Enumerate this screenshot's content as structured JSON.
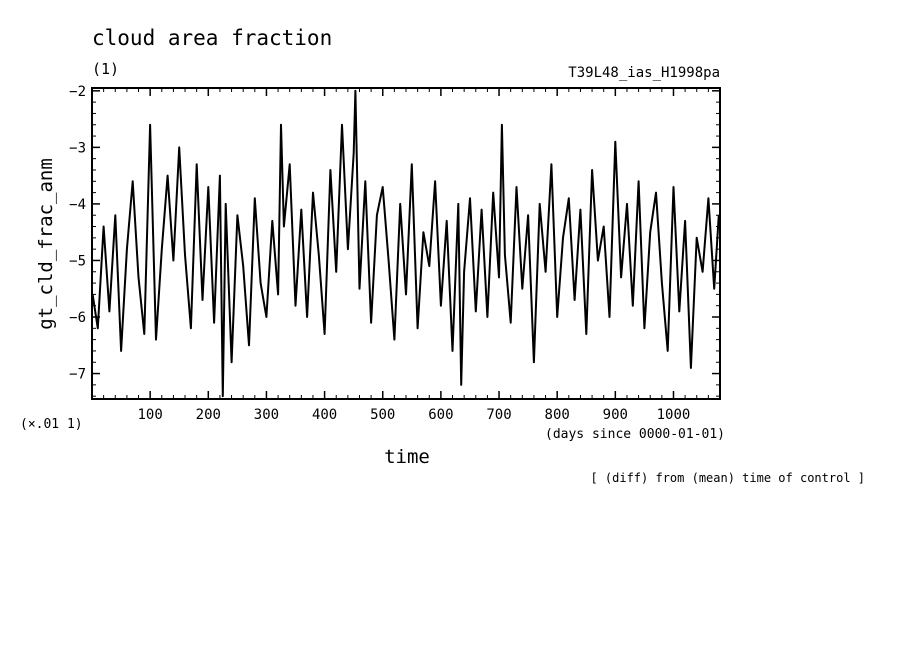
{
  "chart_data": {
    "type": "line",
    "title": "cloud area fraction",
    "units_label": "(1)",
    "run_label": "T39L48_ias_H1998pa",
    "ylabel": "gt_cld_frac_anm",
    "y_scale_label": "(×.01 1)",
    "xlabel": "time",
    "x_units_label": "(days since 0000-01-01)",
    "footnote": "[ (diff) from (mean) time of control ]",
    "xlim": [
      0,
      1080
    ],
    "ylim": [
      -7.45,
      -1.95
    ],
    "x_ticks": [
      100,
      200,
      300,
      400,
      500,
      600,
      700,
      800,
      900,
      1000
    ],
    "y_ticks": [
      -7,
      -6,
      -5,
      -4,
      -3,
      -2
    ],
    "grid": false,
    "series": [
      {
        "x": [
          1,
          10,
          20,
          30,
          40,
          50,
          60,
          70,
          80,
          90,
          100,
          110,
          120,
          130,
          140,
          150,
          160,
          170,
          180,
          190,
          200,
          210,
          220,
          225,
          230,
          240,
          250,
          260,
          270,
          280,
          290,
          300,
          310,
          320,
          325,
          330,
          340,
          350,
          360,
          370,
          380,
          390,
          400,
          410,
          420,
          430,
          440,
          450,
          453,
          460,
          470,
          480,
          490,
          500,
          510,
          520,
          530,
          540,
          550,
          560,
          570,
          580,
          590,
          600,
          610,
          620,
          630,
          635,
          640,
          650,
          660,
          670,
          680,
          690,
          700,
          705,
          710,
          720,
          730,
          740,
          750,
          760,
          770,
          780,
          790,
          800,
          810,
          820,
          830,
          840,
          850,
          860,
          870,
          880,
          890,
          900,
          910,
          920,
          930,
          940,
          950,
          960,
          970,
          980,
          990,
          1000,
          1010,
          1020,
          1030,
          1040,
          1050,
          1060,
          1070,
          1078
        ],
        "values": [
          -5.6,
          -6.2,
          -4.4,
          -5.9,
          -4.2,
          -6.6,
          -4.8,
          -3.6,
          -5.3,
          -6.3,
          -2.6,
          -6.4,
          -4.8,
          -3.5,
          -5.0,
          -3.0,
          -4.9,
          -6.2,
          -3.3,
          -5.7,
          -3.7,
          -6.1,
          -3.5,
          -7.4,
          -4.0,
          -6.8,
          -4.2,
          -5.1,
          -6.5,
          -3.9,
          -5.4,
          -6.0,
          -4.3,
          -5.6,
          -2.6,
          -4.4,
          -3.3,
          -5.8,
          -4.1,
          -6.0,
          -3.8,
          -4.9,
          -6.3,
          -3.4,
          -5.2,
          -2.6,
          -4.8,
          -3.1,
          -2.0,
          -5.5,
          -3.6,
          -6.1,
          -4.2,
          -3.7,
          -5.0,
          -6.4,
          -4.0,
          -5.6,
          -3.3,
          -6.2,
          -4.5,
          -5.1,
          -3.6,
          -5.8,
          -4.3,
          -6.6,
          -4.0,
          -7.2,
          -5.2,
          -3.9,
          -5.9,
          -4.1,
          -6.0,
          -3.8,
          -5.3,
          -2.6,
          -4.9,
          -6.1,
          -3.7,
          -5.5,
          -4.2,
          -6.8,
          -4.0,
          -5.2,
          -3.3,
          -6.0,
          -4.6,
          -3.9,
          -5.7,
          -4.1,
          -6.3,
          -3.4,
          -5.0,
          -4.4,
          -6.0,
          -2.9,
          -5.3,
          -4.0,
          -5.8,
          -3.6,
          -6.2,
          -4.5,
          -3.8,
          -5.4,
          -6.6,
          -3.7,
          -5.9,
          -4.3,
          -6.9,
          -4.6,
          -5.2,
          -3.9,
          -5.5,
          -4.2
        ]
      }
    ]
  }
}
